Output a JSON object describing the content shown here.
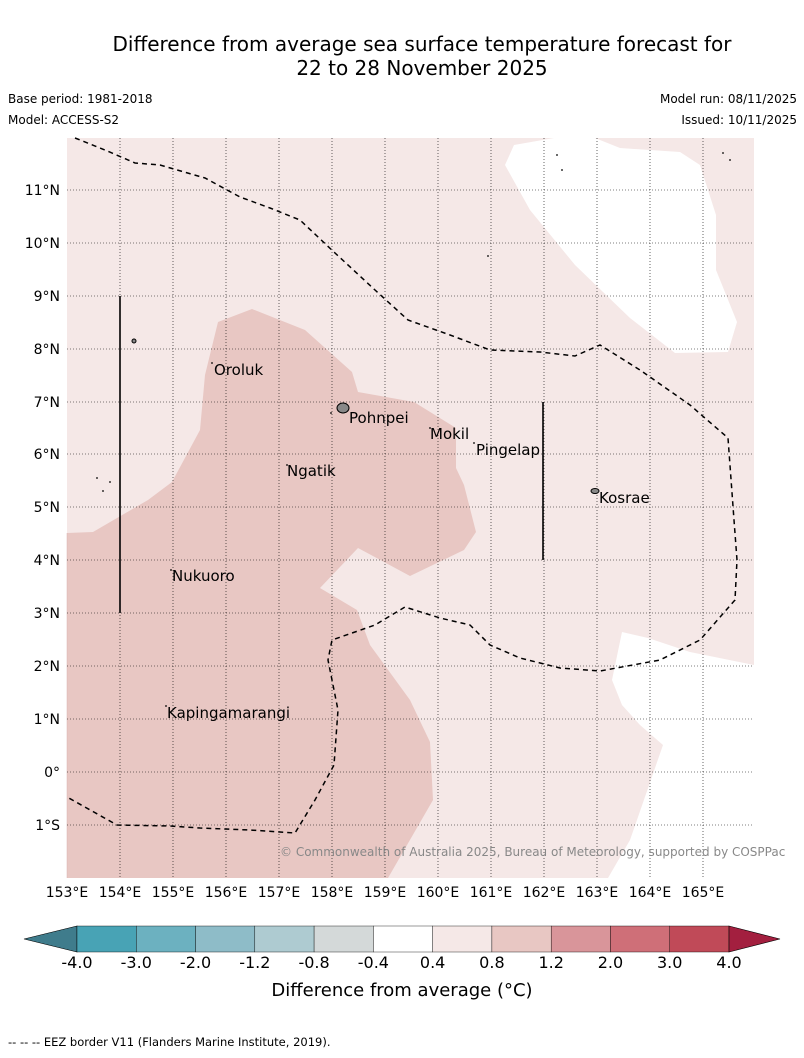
{
  "title_line1": "Difference from average sea surface temperature forecast for",
  "title_line2": "22 to 28 November 2025",
  "base_period": "Base period: 1981-2018",
  "model": "Model: ACCESS-S2",
  "model_run": "Model run: 08/11/2025",
  "issued": "Issued: 10/11/2025",
  "credit": "© Commonwealth of Australia 2025, Bureau of Meteorology, supported by COSPPac",
  "footnote": "--  --  -- EEZ border V11 (Flanders Marine Institute, 2019).",
  "colorbar": {
    "label": "Difference from average (°C)",
    "ticks": [
      "-4.0",
      "-3.0",
      "-2.0",
      "-1.2",
      "-0.8",
      "-0.4",
      "0.4",
      "0.8",
      "1.2",
      "2.0",
      "3.0",
      "4.0"
    ],
    "colors": [
      "#3f7c8c",
      "#48a3b5",
      "#6cb1c0",
      "#8ebcc8",
      "#aecbd1",
      "#d4d9d9",
      "#ffffff",
      "#f5e8e7",
      "#e8c7c3",
      "#d9959a",
      "#cf6f78",
      "#c04a58",
      "#a31f3f"
    ]
  },
  "axes": {
    "lon_labels": [
      "153°E",
      "154°E",
      "155°E",
      "156°E",
      "157°E",
      "158°E",
      "159°E",
      "160°E",
      "161°E",
      "162°E",
      "163°E",
      "164°E",
      "165°E"
    ],
    "lat_labels": [
      "11°N",
      "10°N",
      "9°N",
      "8°N",
      "7°N",
      "6°N",
      "5°N",
      "4°N",
      "3°N",
      "2°N",
      "1°N",
      "0°",
      "1°S"
    ]
  },
  "places": [
    "Oroluk",
    "Pohnpei",
    "Mokil",
    "Pingelap",
    "Ngatik",
    "Kosrae",
    "Nukuoro",
    "Kapingamarangi"
  ]
}
